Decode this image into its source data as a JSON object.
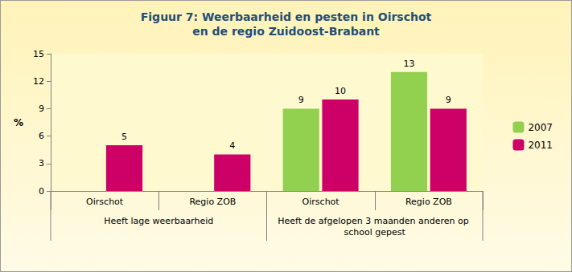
{
  "chart_data": {
    "type": "bar",
    "title": "Figuur 7: Weerbaarheid en pesten in Oirschot\nen de regio Zuidoost-Brabant",
    "ylabel": "%",
    "categories": [
      "Oirschot",
      "Regio ZOB",
      "Oirschot",
      "Regio ZOB"
    ],
    "category_groups": [
      "Heeft lage weerbaarheid",
      "Heeft lage weerbaarheid",
      "Heeft de afgelopen 3 maanden anderen op school gepest",
      "Heeft de afgelopen 3 maanden anderen op school gepest"
    ],
    "series": [
      {
        "name": "2007",
        "color": "#92D050",
        "values": [
          null,
          null,
          9,
          13
        ]
      },
      {
        "name": "2011",
        "color": "#CC0066",
        "values": [
          5,
          4,
          10,
          9
        ]
      }
    ],
    "ylim": [
      0,
      15
    ],
    "yticks": [
      0,
      3,
      6,
      9,
      12,
      15
    ],
    "grid": false,
    "legend": "right",
    "data_labels": true
  }
}
